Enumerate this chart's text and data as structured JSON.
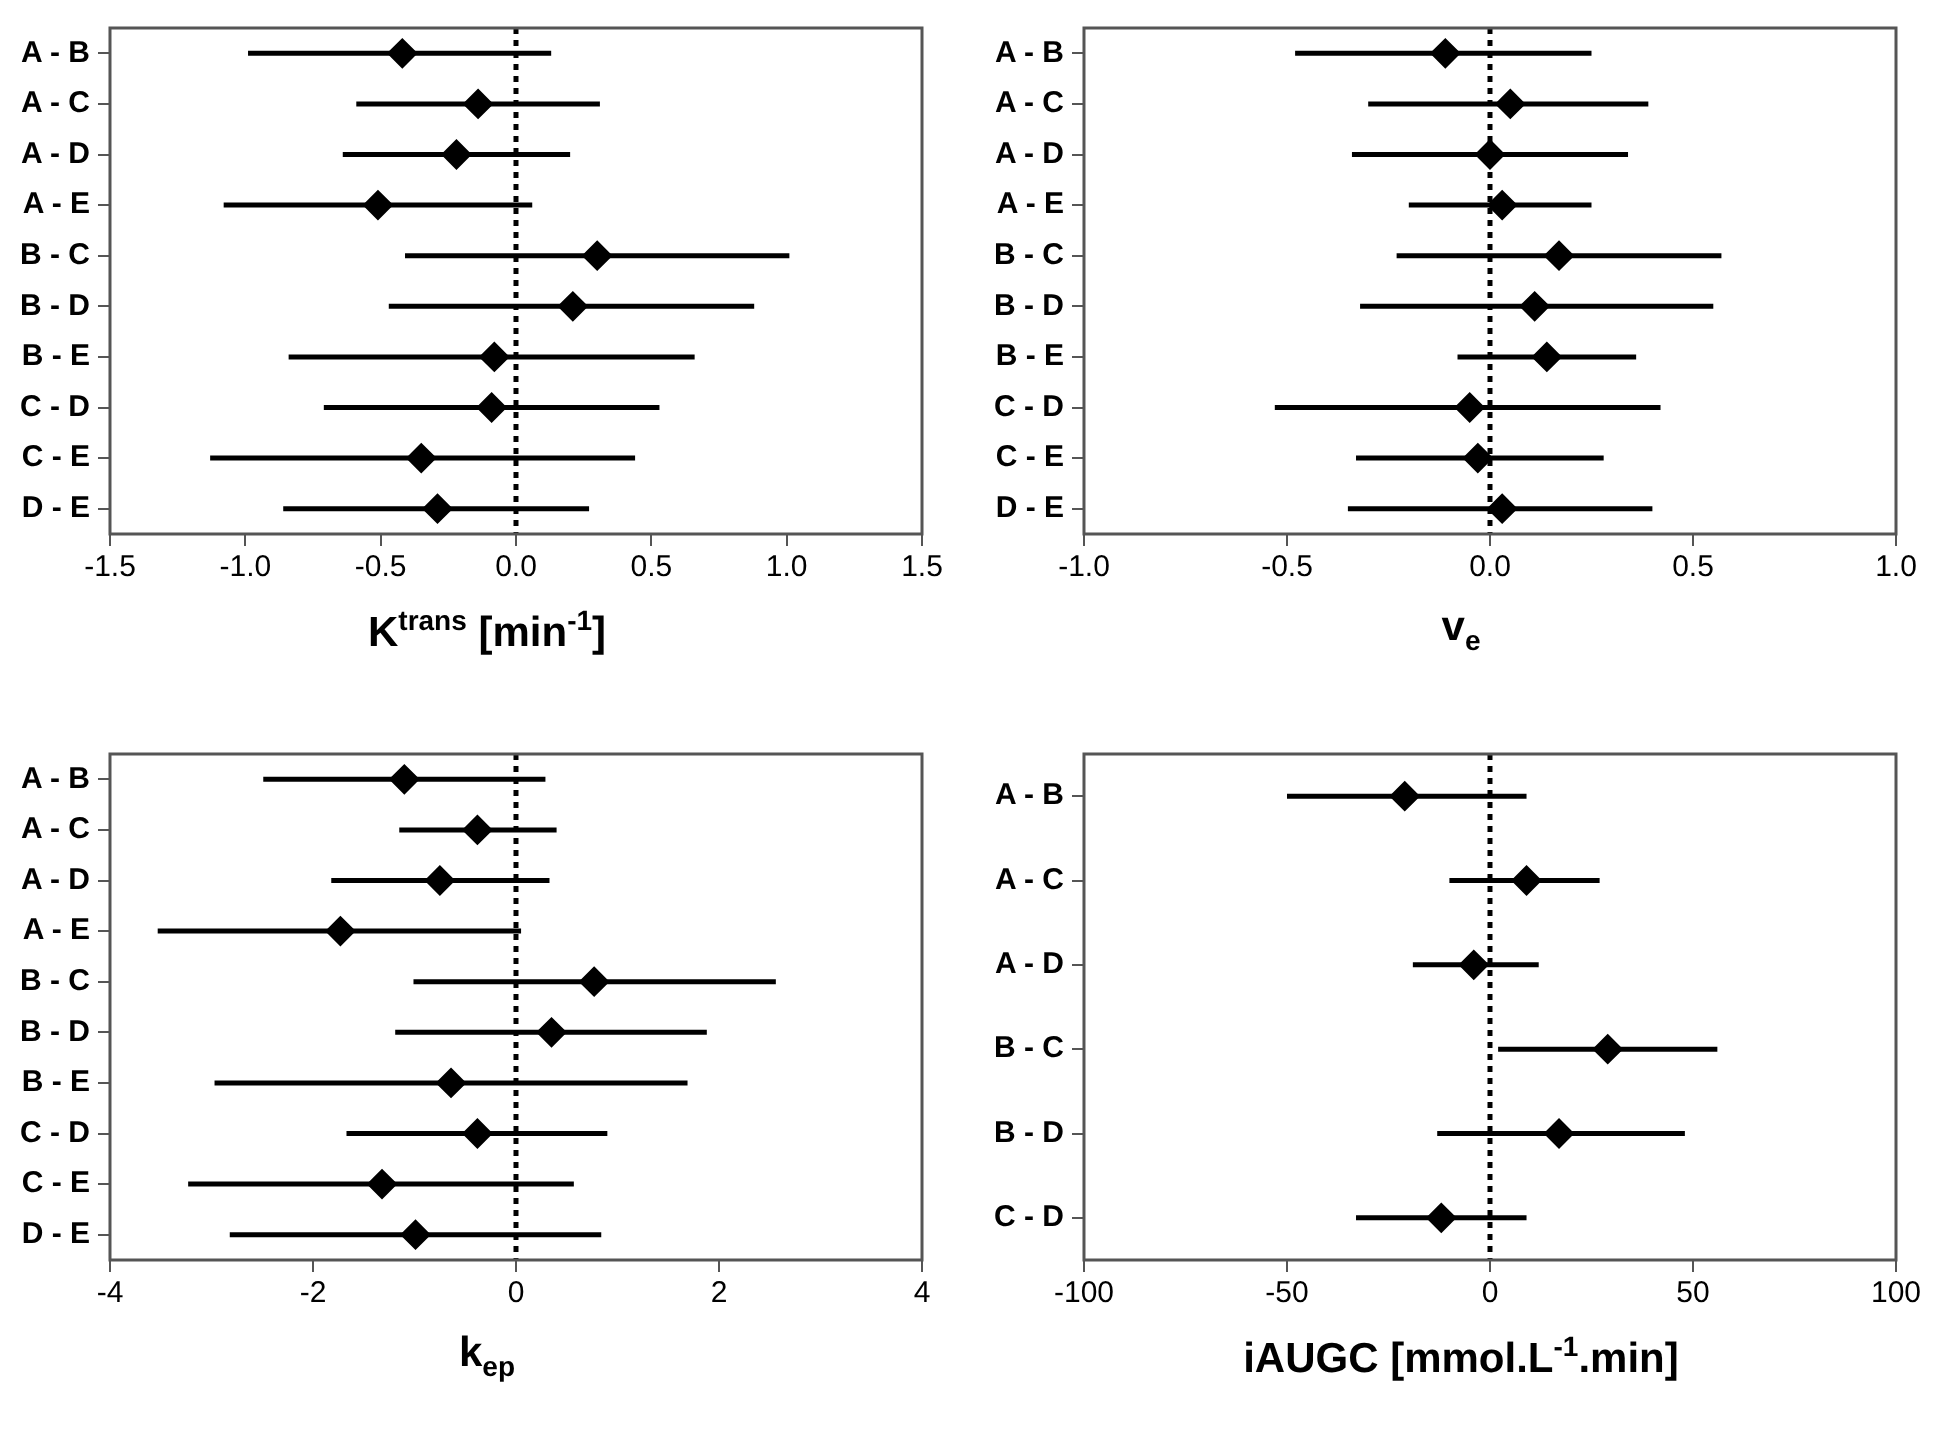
{
  "chart_data": [
    {
      "type": "scatter",
      "orientation": "horizontal",
      "xlabel": "K$^{trans}$ [min$^{-1}$]",
      "categories": [
        "A - B",
        "A - C",
        "A - D",
        "A - E",
        "B - C",
        "B - D",
        "B - E",
        "C - D",
        "C - E",
        "D - E"
      ],
      "series": [
        {
          "color": "#000000",
          "values": [
            -0.42,
            -0.14,
            -0.22,
            -0.51,
            0.3,
            0.21,
            -0.08,
            -0.09,
            -0.35,
            -0.29
          ],
          "errors": [
            [
              -0.99,
              0.13
            ],
            [
              -0.59,
              0.31
            ],
            [
              -0.64,
              0.2
            ],
            [
              -1.08,
              0.06
            ],
            [
              -0.41,
              1.01
            ],
            [
              -0.47,
              0.88
            ],
            [
              -0.84,
              0.66
            ],
            [
              -0.71,
              0.53
            ],
            [
              -1.13,
              0.44
            ],
            [
              -0.86,
              0.27
            ]
          ]
        }
      ],
      "xlim": [
        -1.5,
        1.5
      ],
      "xticks": [
        {
          "value": -1.5,
          "label": "-1.5"
        },
        {
          "value": -1,
          "label": "-1.0"
        },
        {
          "value": -0.5,
          "label": "-0.5"
        },
        {
          "value": 0,
          "label": "0.0"
        },
        {
          "value": 0.5,
          "label": "0.5"
        },
        {
          "value": 1,
          "label": "1.0"
        },
        {
          "value": 1.5,
          "label": "1.5"
        }
      ],
      "ref_lines": [
        {
          "axis": "x",
          "value": 0,
          "color": "#000000",
          "line_style": "dotted"
        }
      ],
      "marker": "diamond",
      "grid": false,
      "legend": false
    },
    {
      "type": "scatter",
      "orientation": "horizontal",
      "xlabel": "v$_{e}$",
      "categories": [
        "A - B",
        "A - C",
        "A - D",
        "A - E",
        "B - C",
        "B - D",
        "B - E",
        "C - D",
        "C - E",
        "D - E"
      ],
      "series": [
        {
          "color": "#000000",
          "values": [
            -0.11,
            0.05,
            0.0,
            0.03,
            0.17,
            0.11,
            0.14,
            -0.05,
            -0.03,
            0.03
          ],
          "errors": [
            [
              -0.48,
              0.25
            ],
            [
              -0.3,
              0.39
            ],
            [
              -0.34,
              0.34
            ],
            [
              -0.2,
              0.25
            ],
            [
              -0.23,
              0.57
            ],
            [
              -0.32,
              0.55
            ],
            [
              -0.08,
              0.36
            ],
            [
              -0.53,
              0.42
            ],
            [
              -0.33,
              0.28
            ],
            [
              -0.35,
              0.4
            ]
          ]
        }
      ],
      "xlim": [
        -1,
        1
      ],
      "xticks": [
        {
          "value": -1,
          "label": "-1.0"
        },
        {
          "value": -0.5,
          "label": "-0.5"
        },
        {
          "value": 0,
          "label": "0.0"
        },
        {
          "value": 0.5,
          "label": "0.5"
        },
        {
          "value": 1,
          "label": "1.0"
        }
      ],
      "ref_lines": [
        {
          "axis": "x",
          "value": 0,
          "color": "#000000",
          "line_style": "dotted"
        }
      ],
      "marker": "diamond",
      "grid": false,
      "legend": false
    },
    {
      "type": "scatter",
      "orientation": "horizontal",
      "xlabel": "k$_{ep}$",
      "categories": [
        "A - B",
        "A - C",
        "A - D",
        "A - E",
        "B - C",
        "B - D",
        "B - E",
        "C - D",
        "C - E",
        "D - E"
      ],
      "series": [
        {
          "color": "#000000",
          "values": [
            -1.1,
            -0.38,
            -0.75,
            -1.73,
            0.77,
            0.35,
            -0.64,
            -0.38,
            -1.32,
            -0.99
          ],
          "errors": [
            [
              -2.49,
              0.29
            ],
            [
              -1.15,
              0.4
            ],
            [
              -1.82,
              0.33
            ],
            [
              -3.53,
              0.05
            ],
            [
              -1.01,
              2.56
            ],
            [
              -1.19,
              1.88
            ],
            [
              -2.97,
              1.69
            ],
            [
              -1.67,
              0.9
            ],
            [
              -3.23,
              0.57
            ],
            [
              -2.82,
              0.84
            ]
          ]
        }
      ],
      "xlim": [
        -4,
        4
      ],
      "xticks": [
        -4,
        -2,
        0,
        2,
        4
      ],
      "ref_lines": [
        {
          "axis": "x",
          "value": 0,
          "color": "#000000",
          "line_style": "dotted"
        }
      ],
      "marker": "diamond",
      "grid": false,
      "legend": false
    },
    {
      "type": "scatter",
      "orientation": "horizontal",
      "xlabel": "iAUGC [mmol.L$^{-1}$.min]",
      "categories": [
        "A - B",
        "A - C",
        "A - D",
        "B - C",
        "B - D",
        "C - D"
      ],
      "series": [
        {
          "color": "#000000",
          "values": [
            -21,
            9,
            -4,
            29,
            17,
            -12
          ],
          "errors": [
            [
              -50,
              9
            ],
            [
              -10,
              27
            ],
            [
              -19,
              12
            ],
            [
              2,
              56
            ],
            [
              -13,
              48
            ],
            [
              -33,
              9
            ]
          ]
        }
      ],
      "xlim": [
        -100,
        100
      ],
      "xticks": [
        -100,
        -50,
        0,
        50,
        100
      ],
      "ref_lines": [
        {
          "axis": "x",
          "value": 0,
          "color": "#000000",
          "line_style": "dotted"
        }
      ],
      "marker": "diamond",
      "grid": false,
      "legend": false
    }
  ]
}
